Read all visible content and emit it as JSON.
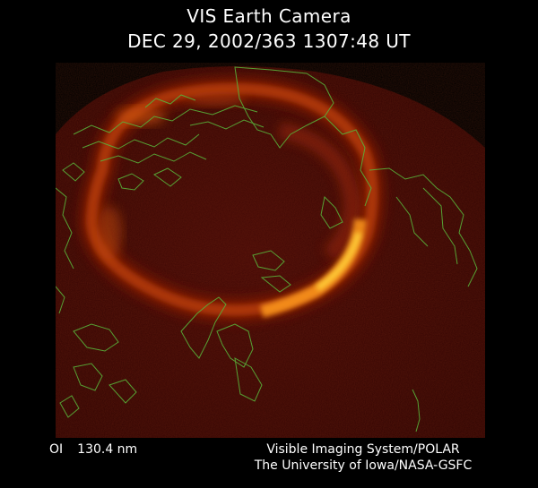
{
  "header": {
    "title": "VIS Earth Camera",
    "timestamp": "DEC 29, 2002/363 1307:48 UT"
  },
  "image": {
    "subject": "auroral oval over northern hemisphere",
    "colors": {
      "background_disk": "#3b0603",
      "aurora_dim": "#8a1f06",
      "aurora_bright": "#ffd23a",
      "coastline": "#58b23a",
      "space": "#000000"
    }
  },
  "footer": {
    "wavelength_label": "OI",
    "wavelength_value": "130.4 nm",
    "credit_line1": "Visible Imaging System/POLAR",
    "credit_line2": "The University of Iowa/NASA-GSFC"
  }
}
